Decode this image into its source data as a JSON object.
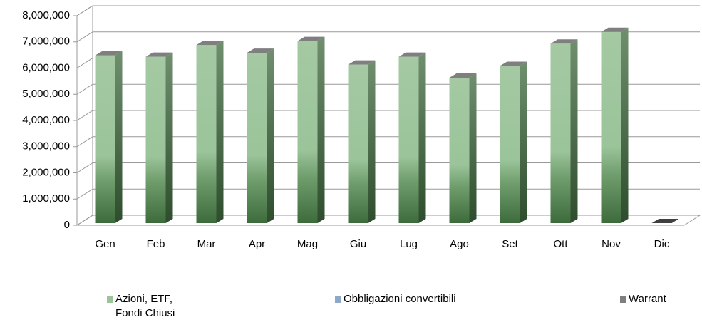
{
  "chart_data": {
    "type": "bar3d-stacked",
    "categories": [
      "Gen",
      "Feb",
      "Mar",
      "Apr",
      "Mag",
      "Giu",
      "Lug",
      "Ago",
      "Set",
      "Ott",
      "Nov",
      "Dic"
    ],
    "series": [
      {
        "name": "Azioni, ETF,\nFondi Chiusi",
        "color": "#9bc49a",
        "values": [
          6400000,
          6350000,
          6800000,
          6500000,
          6950000,
          6050000,
          6350000,
          5550000,
          6000000,
          6850000,
          7300000,
          0
        ]
      },
      {
        "name": "Obbligazioni convertibili",
        "color": "#8ea9c8",
        "values": [
          0,
          0,
          0,
          0,
          0,
          0,
          0,
          0,
          0,
          0,
          0,
          0
        ]
      },
      {
        "name": "Warrant",
        "color": "#7f7f7f",
        "values": [
          0,
          0,
          0,
          0,
          0,
          0,
          0,
          0,
          0,
          0,
          0,
          0
        ]
      }
    ],
    "ylim": [
      0,
      8000000
    ],
    "yticks": [
      0,
      {
        "value": 1000000,
        "label": "1,000,000"
      },
      {
        "value": 2000000,
        "label": "2,000,000"
      },
      {
        "value": 3000000,
        "label": "3,000,000"
      },
      {
        "value": 4000000,
        "label": "4,000,000"
      },
      {
        "value": 5000000,
        "label": "5,000,000"
      },
      {
        "value": 6000000,
        "label": "6,000,000"
      },
      {
        "value": 7000000,
        "label": "7,000,000"
      },
      {
        "value": 8000000,
        "label": "8,000,000"
      }
    ],
    "grid": true,
    "legend": "bottom"
  }
}
